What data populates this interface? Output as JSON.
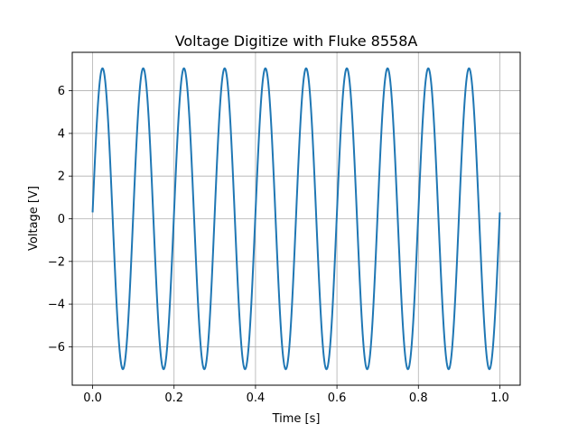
{
  "chart_data": {
    "type": "line",
    "title": "Voltage Digitize with Fluke 8558A",
    "xlabel": "Time [s]",
    "ylabel": "Voltage [V]",
    "xlim": [
      -0.05,
      1.05
    ],
    "ylim": [
      -7.8,
      7.8
    ],
    "xticks": [
      0.0,
      0.2,
      0.4,
      0.6,
      0.8,
      1.0
    ],
    "xtick_labels": [
      "0.0",
      "0.2",
      "0.4",
      "0.6",
      "0.8",
      "1.0"
    ],
    "yticks": [
      -6,
      -4,
      -2,
      0,
      2,
      4,
      6
    ],
    "ytick_labels": [
      "−6",
      "−4",
      "−2",
      "0",
      "2",
      "4",
      "6"
    ],
    "grid": true,
    "series": [
      {
        "color": "#1f77b4",
        "waveform": "sine",
        "amplitude": 7.05,
        "frequency_hz": 10,
        "phase_offset": 0.3,
        "x_start": 0.0,
        "x_end": 1.0
      }
    ]
  }
}
